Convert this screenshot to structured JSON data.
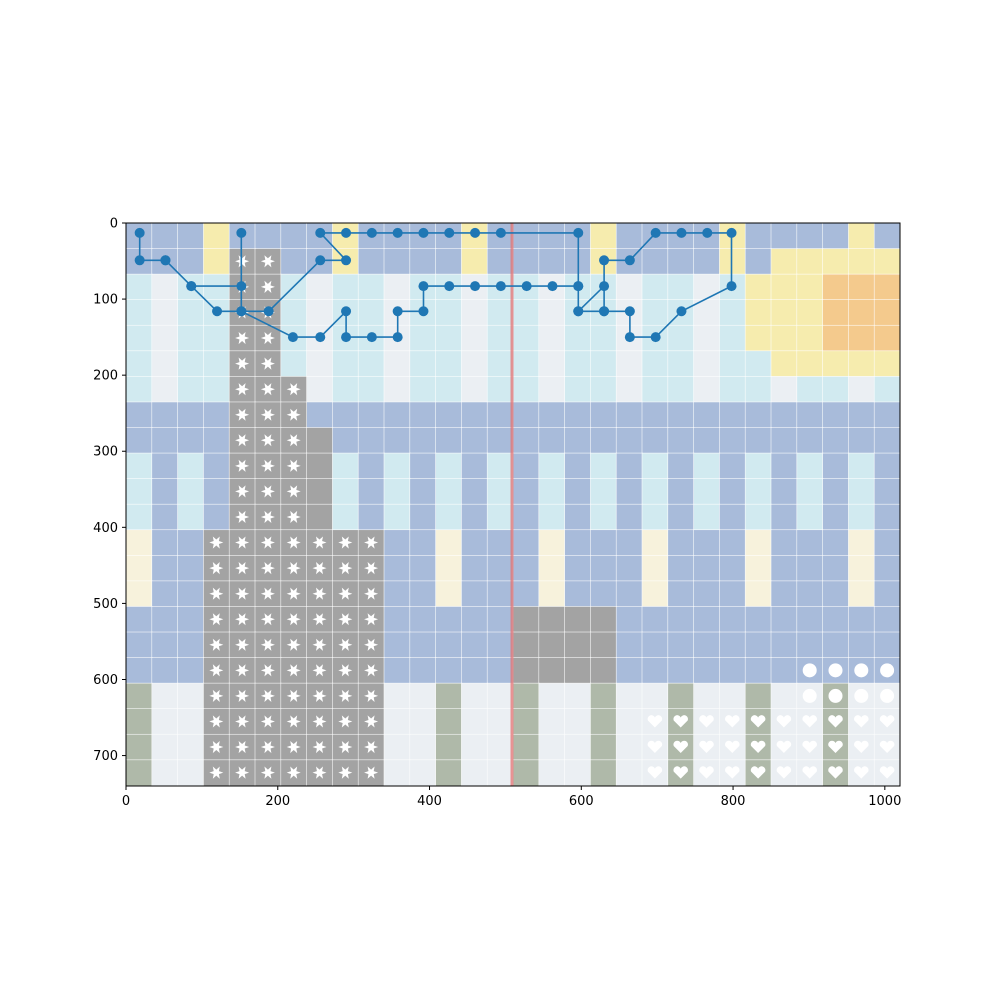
{
  "chart_data": {
    "type": "line",
    "title": "",
    "xlabel": "",
    "ylabel": "",
    "xlim": [
      0,
      1020
    ],
    "ylim": [
      740,
      0
    ],
    "y_inverted": true,
    "grid": false,
    "background": "image-grid",
    "grid_cells": {
      "cols": 30,
      "rows": 22,
      "cell_w": 34,
      "cell_h": 33.6
    },
    "x_ticks": [
      0,
      200,
      400,
      600,
      800,
      1000
    ],
    "y_ticks": [
      0,
      100,
      200,
      300,
      400,
      500,
      600,
      700
    ],
    "colors": {
      "line": "#1f77b4",
      "marker": "#1f77b4",
      "vertical_red": "#e57373",
      "cell_light_blue": "#cde8ef",
      "cell_blue": "#9fb4d6",
      "cell_yellow": "#f6eba6",
      "cell_orange": "#f3c581",
      "cell_cream": "#f7f1d9",
      "cell_gray": "#9a9a9a",
      "cell_gray_green": "#a7b2a0",
      "cell_white": "#e9eef2"
    },
    "icons": [
      "lightning-icon",
      "arrow-diagonal-icon",
      "gear-icon",
      "cup-icon",
      "rectangle-icon",
      "digit-one-icon",
      "diamond-icon",
      "down-arrow-icon",
      "fan-icon",
      "triangle-arrow-icon",
      "stairs-icon",
      "step-icon",
      "umbrella-icon",
      "heart-icon",
      "circle-icon",
      "anchor-icon",
      "comet-icon",
      "microphone-icon",
      "signal-icon",
      "gate-icon",
      "jellyfish-icon",
      "sunburst-icon"
    ],
    "series": [
      {
        "x": [
          18,
          18,
          52,
          86,
          152,
          152,
          152,
          188,
          256,
          290,
          256,
          290,
          324,
          358,
          392,
          426,
          460,
          494,
          596,
          596,
          596,
          630,
          630,
          664,
          664,
          698,
          732,
          798,
          798,
          766,
          732,
          698,
          664,
          630,
          630,
          596,
          596,
          562,
          528,
          494,
          460,
          426,
          392,
          392,
          358,
          358,
          324,
          290,
          290,
          256,
          220,
          152,
          120,
          86,
          52
        ],
        "y": [
          13,
          49,
          49,
          83,
          83,
          13,
          116,
          116,
          49,
          49,
          13,
          13,
          13,
          13,
          13,
          13,
          13,
          13,
          13,
          83,
          116,
          83,
          116,
          116,
          150,
          150,
          116,
          83,
          13,
          13,
          13,
          13,
          49,
          49,
          116,
          116,
          83,
          83,
          83,
          83,
          83,
          83,
          83,
          116,
          116,
          150,
          150,
          150,
          116,
          150,
          150,
          116,
          116,
          83,
          49
        ]
      }
    ]
  }
}
